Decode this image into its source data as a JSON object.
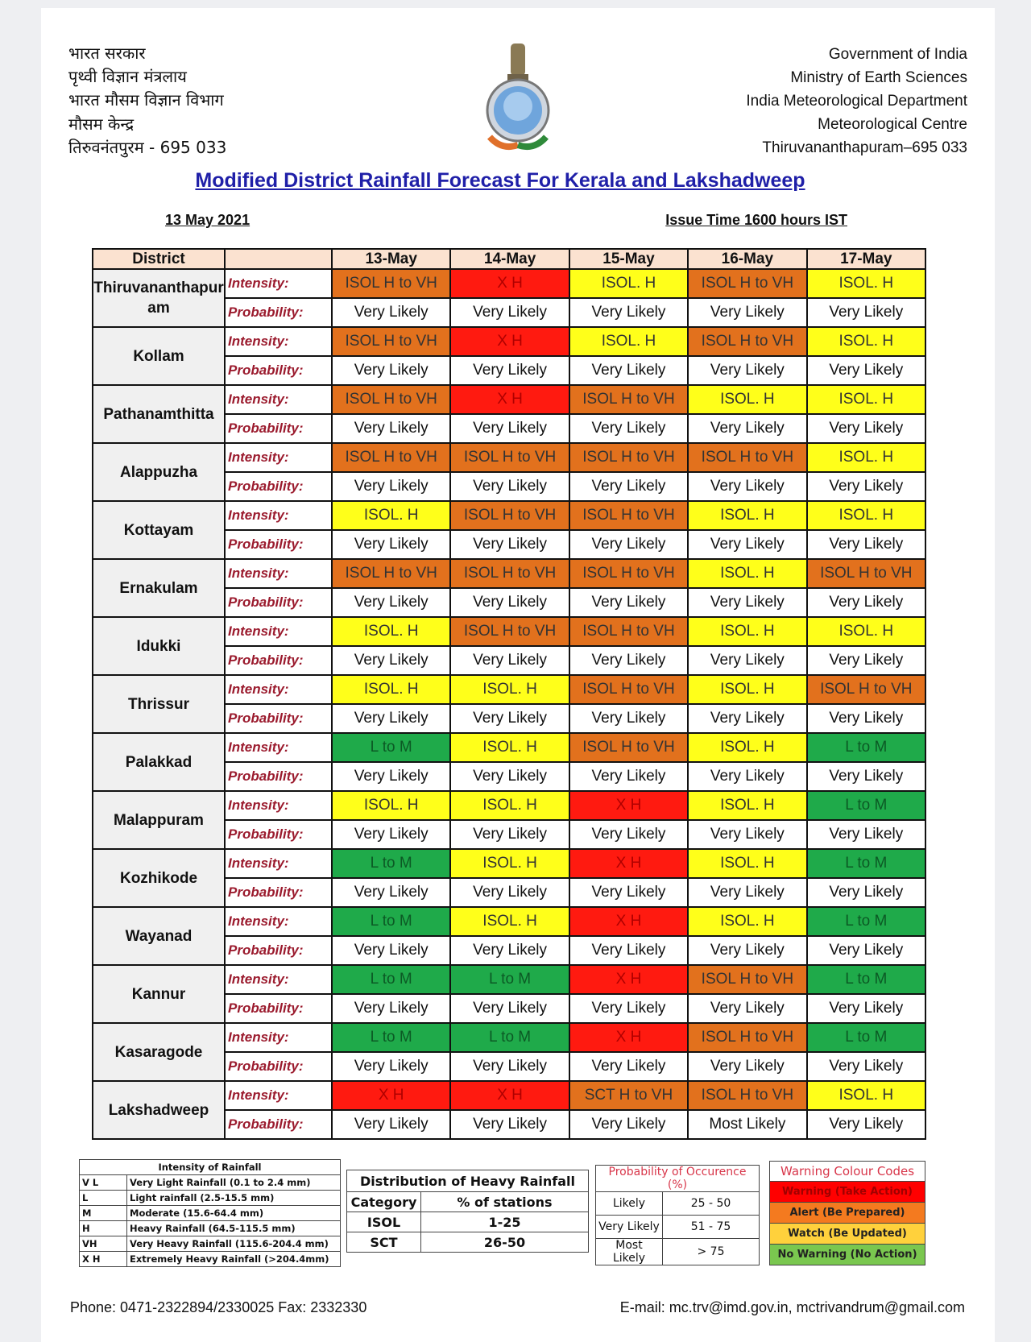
{
  "header": {
    "hindi_lines": [
      "भारत सरकार",
      "पृथ्वी विज्ञान मंत्रलाय",
      "भारत मौसम विज्ञान विभाग",
      "मौसम केन्द्र",
      "तिरुवनंतपुरम - 695 033"
    ],
    "english_lines": [
      "Government of India",
      "Ministry of Earth Sciences",
      "India Meteorological Department",
      "Meteorological Centre",
      "Thiruvananthapuram–695 033"
    ],
    "title": "Modified District Rainfall Forecast For Kerala and Lakshadweep",
    "date": "13 May 2021",
    "issue_time": "Issue Time 1600 hours IST"
  },
  "forecast": {
    "col_district": "District",
    "dates": [
      "13-May",
      "14-May",
      "15-May",
      "16-May",
      "17-May"
    ],
    "intensity_label": "Intensity:",
    "probability_label": "Probability:",
    "colors": {
      "X H": "#ff1a10",
      "ISOL H to VH": "#e2711d",
      "SCT H to VH": "#e2711d",
      "ISOL. H": "#ffff1a",
      "L to M": "#1faa4a"
    },
    "rows": [
      {
        "district": "Thiruvananthapuram",
        "intensity": [
          "ISOL H to VH",
          "X H",
          "ISOL. H",
          "ISOL H to VH",
          "ISOL. H"
        ],
        "probability": [
          "Very Likely",
          "Very Likely",
          "Very Likely",
          "Very Likely",
          "Very Likely"
        ]
      },
      {
        "district": "Kollam",
        "intensity": [
          "ISOL H to VH",
          "X H",
          "ISOL. H",
          "ISOL H to VH",
          "ISOL. H"
        ],
        "probability": [
          "Very Likely",
          "Very Likely",
          "Very Likely",
          "Very Likely",
          "Very Likely"
        ]
      },
      {
        "district": "Pathanamthitta",
        "intensity": [
          "ISOL H to VH",
          "X H",
          "ISOL H to VH",
          "ISOL. H",
          "ISOL. H"
        ],
        "probability": [
          "Very Likely",
          "Very Likely",
          "Very Likely",
          "Very Likely",
          "Very Likely"
        ]
      },
      {
        "district": "Alappuzha",
        "intensity": [
          "ISOL H to VH",
          "ISOL H to VH",
          "ISOL H to VH",
          "ISOL H to VH",
          "ISOL. H"
        ],
        "probability": [
          "Very Likely",
          "Very Likely",
          "Very Likely",
          "Very Likely",
          "Very Likely"
        ]
      },
      {
        "district": "Kottayam",
        "intensity": [
          "ISOL. H",
          "ISOL H to VH",
          "ISOL H to VH",
          "ISOL. H",
          "ISOL. H"
        ],
        "probability": [
          "Very Likely",
          "Very Likely",
          "Very Likely",
          "Very Likely",
          "Very Likely"
        ]
      },
      {
        "district": "Ernakulam",
        "intensity": [
          "ISOL H to VH",
          "ISOL H to VH",
          "ISOL H to VH",
          "ISOL. H",
          "ISOL H to VH"
        ],
        "probability": [
          "Very Likely",
          "Very Likely",
          "Very Likely",
          "Very Likely",
          "Very Likely"
        ]
      },
      {
        "district": "Idukki",
        "intensity": [
          "ISOL. H",
          "ISOL H to VH",
          "ISOL H to VH",
          "ISOL. H",
          "ISOL. H"
        ],
        "probability": [
          "Very Likely",
          "Very Likely",
          "Very Likely",
          "Very Likely",
          "Very Likely"
        ]
      },
      {
        "district": "Thrissur",
        "intensity": [
          "ISOL. H",
          "ISOL. H",
          "ISOL H to VH",
          "ISOL. H",
          "ISOL H to VH"
        ],
        "probability": [
          "Very Likely",
          "Very Likely",
          "Very Likely",
          "Very Likely",
          "Very Likely"
        ]
      },
      {
        "district": "Palakkad",
        "intensity": [
          "L to M",
          "ISOL. H",
          "ISOL H to VH",
          "ISOL. H",
          "L to M"
        ],
        "probability": [
          "Very Likely",
          "Very Likely",
          "Very Likely",
          "Very Likely",
          "Very Likely"
        ]
      },
      {
        "district": "Malappuram",
        "intensity": [
          "ISOL. H",
          "ISOL. H",
          "X H",
          "ISOL. H",
          "L to M"
        ],
        "probability": [
          "Very Likely",
          "Very Likely",
          "Very Likely",
          "Very Likely",
          "Very Likely"
        ]
      },
      {
        "district": "Kozhikode",
        "intensity": [
          "L to M",
          "ISOL. H",
          "X H",
          "ISOL. H",
          "L to M"
        ],
        "probability": [
          "Very Likely",
          "Very Likely",
          "Very Likely",
          "Very Likely",
          "Very Likely"
        ]
      },
      {
        "district": "Wayanad",
        "intensity": [
          "L to M",
          "ISOL. H",
          "X H",
          "ISOL. H",
          "L to M"
        ],
        "probability": [
          "Very Likely",
          "Very Likely",
          "Very Likely",
          "Very Likely",
          "Very Likely"
        ]
      },
      {
        "district": "Kannur",
        "intensity": [
          "L to M",
          "L to M",
          "X H",
          "ISOL H to VH",
          "L to M"
        ],
        "probability": [
          "Very Likely",
          "Very Likely",
          "Very Likely",
          "Very Likely",
          "Very Likely"
        ]
      },
      {
        "district": "Kasaragode",
        "intensity": [
          "L to M",
          "L to M",
          "X H",
          "ISOL H to VH",
          "L to M"
        ],
        "probability": [
          "Very Likely",
          "Very Likely",
          "Very Likely",
          "Very Likely",
          "Very Likely"
        ]
      },
      {
        "district": "Lakshadweep",
        "intensity": [
          "X H",
          "X H",
          "SCT H to VH",
          "ISOL H to VH",
          "ISOL. H"
        ],
        "probability": [
          "Very Likely",
          "Very Likely",
          "Very Likely",
          "Most Likely",
          "Very Likely"
        ]
      }
    ]
  },
  "legend": {
    "intensity": {
      "title": "Intensity of Rainfall",
      "rows": [
        [
          "V L",
          "Very Light Rainfall (0.1 to 2.4 mm)"
        ],
        [
          "L",
          "Light rainfall (2.5-15.5 mm)"
        ],
        [
          "M",
          "Moderate (15.6-64.4 mm)"
        ],
        [
          "H",
          "Heavy Rainfall (64.5-115.5 mm)"
        ],
        [
          "VH",
          "Very Heavy Rainfall (115.6-204.4 mm)"
        ],
        [
          "X H",
          "Extremely Heavy Rainfall (>204.4mm)"
        ]
      ]
    },
    "distribution": {
      "title": "Distribution of Heavy Rainfall",
      "headers": [
        "Category",
        "% of stations"
      ],
      "rows": [
        [
          "ISOL",
          "1-25"
        ],
        [
          "SCT",
          "26-50"
        ]
      ]
    },
    "probability": {
      "title": "Probability of Occurence (%)",
      "rows": [
        [
          "Likely",
          "25 - 50"
        ],
        [
          "Very Likely",
          "51 - 75"
        ],
        [
          "Most Likely",
          "> 75"
        ]
      ]
    },
    "warning": {
      "title": "Warning Colour Codes",
      "rows": [
        {
          "label": "Warning (Take Action)",
          "color": "#ff0000"
        },
        {
          "label": "Alert (Be Prepared)",
          "color": "#f47a1f"
        },
        {
          "label": "Watch (Be Updated)",
          "color": "#ffd13c"
        },
        {
          "label": "No Warning (No Action)",
          "color": "#7ac74f"
        }
      ]
    }
  },
  "footer": {
    "phone": "Phone: 0471-2322894/2330025 Fax: 2332330",
    "email": "E-mail: mc.trv@imd.gov.in, mctrivandrum@gmail.com"
  }
}
